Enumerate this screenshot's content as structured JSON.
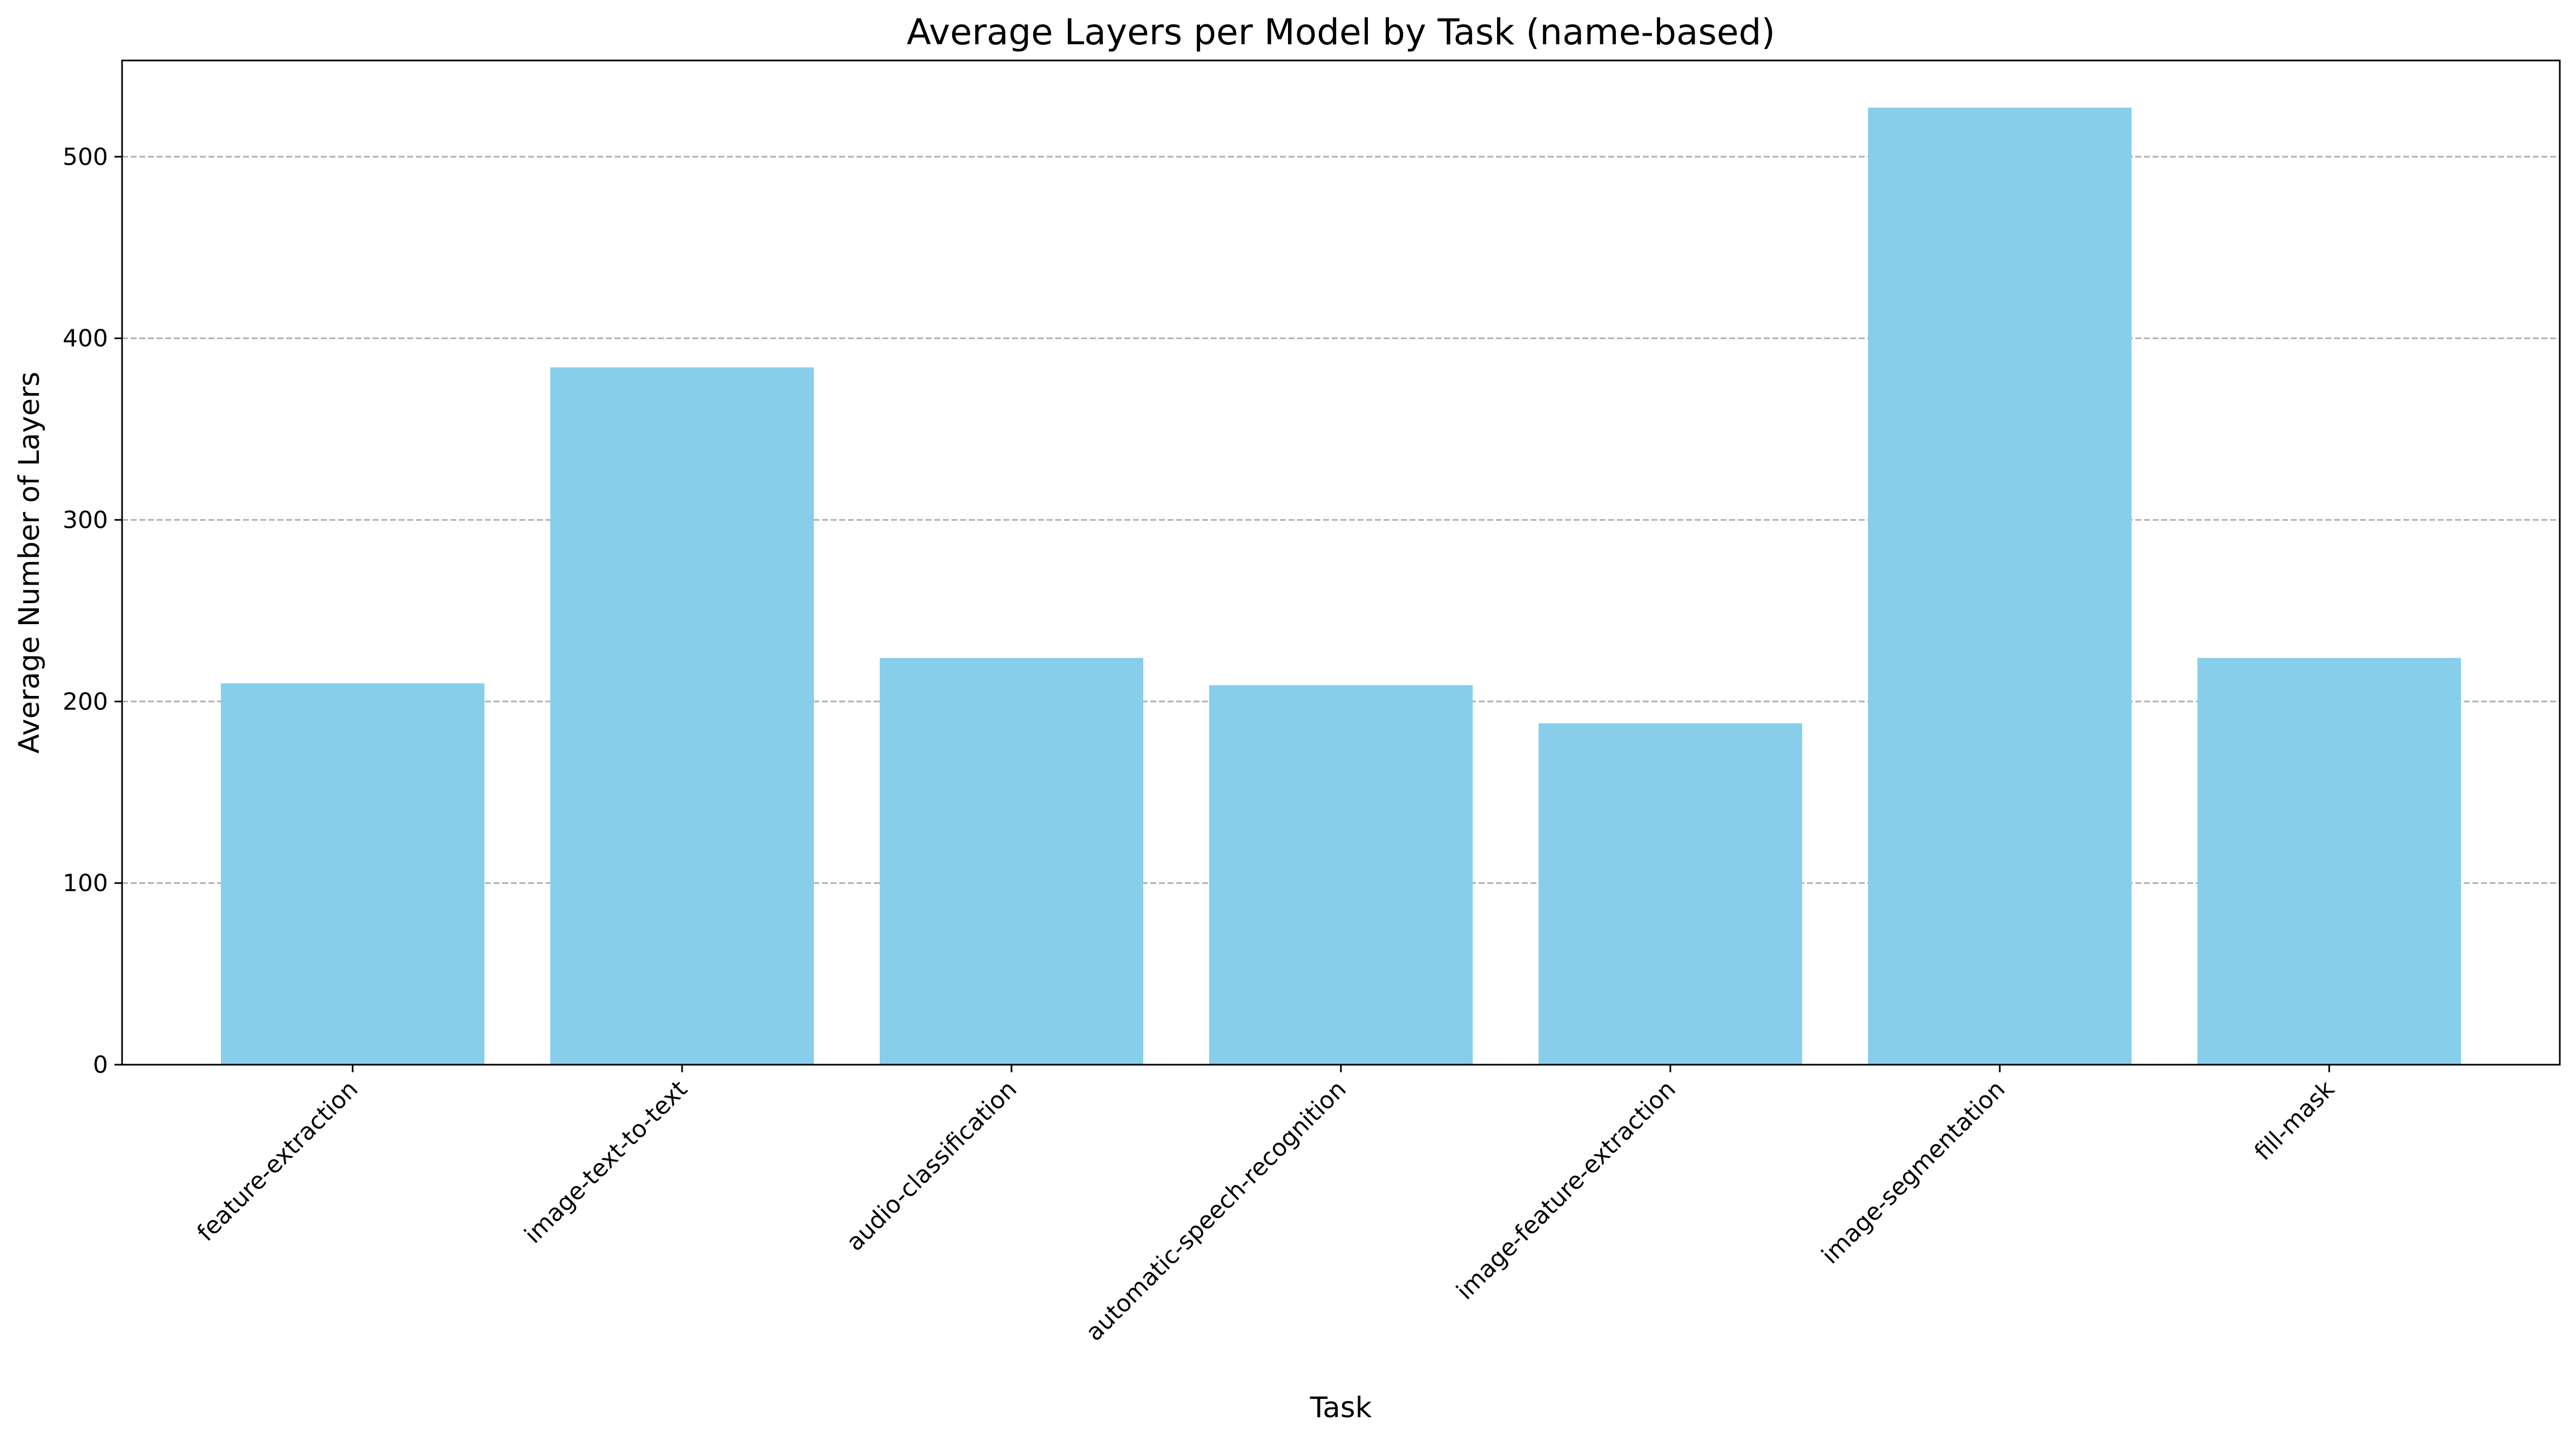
{
  "chart_data": {
    "type": "bar",
    "title": "Average Layers per Model by Task (name-based)",
    "xlabel": "Task",
    "ylabel": "Average Number of Layers",
    "categories": [
      "feature-extraction",
      "image-text-to-text",
      "audio-classification",
      "automatic-speech-recognition",
      "image-feature-extraction",
      "image-segmentation",
      "fill-mask"
    ],
    "values": [
      210,
      384,
      224,
      209,
      188,
      527,
      224
    ],
    "yticks": [
      0,
      100,
      200,
      300,
      400,
      500
    ],
    "ylim": [
      0,
      553
    ],
    "grid": "y",
    "bar_color": "#87ceeb",
    "legend": "none"
  }
}
